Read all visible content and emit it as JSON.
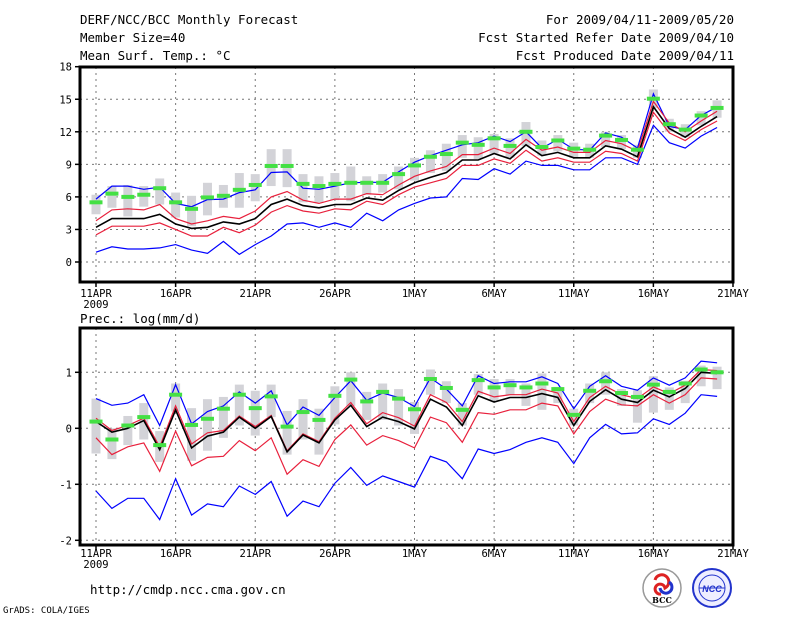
{
  "header": {
    "title": "DERF/NCC/BCC Monthly Forecast",
    "member_size": "Member Size=40",
    "variable": "Mean Surf. Temp.: °C",
    "period": "For 2009/04/11-2009/05/20",
    "started": "Fcst Started Refer Date 2009/04/10",
    "produced": "Fcst Produced Date 2009/04/11"
  },
  "footer": {
    "url": "http://cmdp.ncc.cma.gov.cn",
    "credit": "GrADS: COLA/IGES",
    "logo_bcc": "BCC",
    "logo_ncc": "NCC"
  },
  "colors": {
    "outer": "#0000ff",
    "inner": "#e8203c",
    "mean": "#000000",
    "median": "#44e044",
    "box": "#d3d3d8"
  },
  "chart_data": [
    {
      "type": "line",
      "title": "Mean Surf. Temp.: °C",
      "xlabel": "",
      "ylabel": "",
      "x_ticks": [
        "11APR",
        "16APR",
        "21APR",
        "26APR",
        "1MAY",
        "6MAY",
        "11MAY",
        "16MAY",
        "21MAY"
      ],
      "x_year": "2009",
      "xlim_days": [
        0,
        40
      ],
      "ylim": [
        -2,
        18
      ],
      "y_ticks": [
        "0",
        "3",
        "6",
        "9",
        "12",
        "15",
        "18"
      ],
      "y_tick_values": [
        0,
        3,
        6,
        9,
        12,
        15,
        18
      ],
      "grid": true,
      "series": [
        {
          "name": "upper-outer",
          "color": "outer",
          "values": [
            5.8,
            7.0,
            7.0,
            6.7,
            6.9,
            5.4,
            5.1,
            5.75,
            5.8,
            6.4,
            6.65,
            8.25,
            8.3,
            6.8,
            6.7,
            7.0,
            7.3,
            7.35,
            7.35,
            8.3,
            9.2,
            9.8,
            10.3,
            10.8,
            11.0,
            11.6,
            11.1,
            12.0,
            10.5,
            11.3,
            10.4,
            10.3,
            11.9,
            11.5,
            10.5,
            15.5,
            12.5,
            12.2,
            13.5,
            14.3
          ]
        },
        {
          "name": "upper-inner",
          "color": "inner",
          "values": [
            3.8,
            4.8,
            4.9,
            4.8,
            5.3,
            4.0,
            3.5,
            3.8,
            4.2,
            4.0,
            4.7,
            6.0,
            6.5,
            5.7,
            5.4,
            5.8,
            5.8,
            6.3,
            6.2,
            7.1,
            7.9,
            8.4,
            8.8,
            9.9,
            9.9,
            10.5,
            10.0,
            11.3,
            10.3,
            10.6,
            10.1,
            10.1,
            11.2,
            10.9,
            10.2,
            14.8,
            12.8,
            12.0,
            13.0,
            13.9
          ]
        },
        {
          "name": "mean",
          "color": "mean",
          "values": [
            3.2,
            4.0,
            4.0,
            4.0,
            4.4,
            3.5,
            3.1,
            3.2,
            3.7,
            3.5,
            4.0,
            5.3,
            5.8,
            5.2,
            5.0,
            5.3,
            5.3,
            5.9,
            5.7,
            6.6,
            7.3,
            7.8,
            8.25,
            9.4,
            9.4,
            10.0,
            9.5,
            10.8,
            9.8,
            10.1,
            9.6,
            9.6,
            10.7,
            10.4,
            9.7,
            14.3,
            12.3,
            11.5,
            12.5,
            13.4
          ]
        },
        {
          "name": "lower-inner",
          "color": "inner",
          "values": [
            2.5,
            3.3,
            3.3,
            3.3,
            3.6,
            3.0,
            2.4,
            2.4,
            3.2,
            2.7,
            3.4,
            4.6,
            5.2,
            4.7,
            4.5,
            4.9,
            4.8,
            5.6,
            5.3,
            6.2,
            6.9,
            7.3,
            7.7,
            8.9,
            8.9,
            9.5,
            9.1,
            10.3,
            9.3,
            9.6,
            9.2,
            9.2,
            10.2,
            10.0,
            9.3,
            13.8,
            11.9,
            11.2,
            12.2,
            13.0
          ]
        },
        {
          "name": "lower-outer",
          "color": "outer",
          "values": [
            0.9,
            1.4,
            1.2,
            1.2,
            1.3,
            1.6,
            1.1,
            0.8,
            1.9,
            0.7,
            1.6,
            2.4,
            3.5,
            3.6,
            3.2,
            3.6,
            3.2,
            4.5,
            3.8,
            4.8,
            5.4,
            5.9,
            6.0,
            7.7,
            7.6,
            8.6,
            8.1,
            9.3,
            8.9,
            8.9,
            8.5,
            8.5,
            9.6,
            9.6,
            9.0,
            12.6,
            11.0,
            10.5,
            11.6,
            12.4
          ]
        }
      ],
      "median": [
        5.5,
        6.3,
        6.0,
        6.2,
        6.8,
        5.5,
        4.9,
        5.95,
        6.1,
        6.65,
        7.1,
        8.85,
        8.85,
        7.2,
        7.0,
        7.2,
        7.3,
        7.3,
        7.3,
        8.1,
        8.9,
        9.7,
        9.95,
        11.0,
        10.8,
        11.4,
        10.7,
        12.0,
        10.6,
        11.2,
        10.45,
        10.35,
        11.65,
        11.25,
        10.35,
        15.05,
        12.7,
        12.2,
        13.5,
        14.2
      ],
      "box_low": [
        4.4,
        5.0,
        4.2,
        5.1,
        5.3,
        4.1,
        3.3,
        4.3,
        5.0,
        5.0,
        5.6,
        7.0,
        6.9,
        5.5,
        5.5,
        5.7,
        5.6,
        6.2,
        6.4,
        6.7,
        7.5,
        8.2,
        8.4,
        9.6,
        9.5,
        10.0,
        9.6,
        10.7,
        9.8,
        10.2,
        9.6,
        9.6,
        10.6,
        10.4,
        9.6,
        14.2,
        12.0,
        11.5,
        12.6,
        13.3
      ],
      "box_high": [
        6.2,
        7.0,
        7.1,
        7.0,
        7.7,
        6.4,
        6.1,
        7.3,
        7.1,
        8.2,
        8.1,
        10.4,
        10.4,
        8.1,
        7.9,
        8.2,
        8.8,
        7.9,
        8.1,
        8.8,
        9.6,
        10.3,
        10.9,
        11.7,
        11.5,
        11.8,
        11.4,
        12.9,
        11.2,
        11.7,
        11.0,
        10.9,
        12.0,
        11.7,
        10.8,
        15.9,
        13.2,
        12.7,
        13.9,
        14.9
      ]
    },
    {
      "type": "line",
      "title": "Prec.: log(mm/d)",
      "xlabel": "",
      "ylabel": "",
      "x_ticks": [
        "11APR",
        "16APR",
        "21APR",
        "26APR",
        "1MAY",
        "6MAY",
        "11MAY",
        "16MAY",
        "21MAY"
      ],
      "x_year": "2009",
      "xlim_days": [
        0,
        40
      ],
      "ylim": [
        -2.1,
        1.77
      ],
      "y_ticks": [
        "-2",
        "-1",
        "0",
        "1"
      ],
      "y_tick_values": [
        -2,
        -1,
        0,
        1
      ],
      "grid": true,
      "series": [
        {
          "name": "upper-outer",
          "color": "outer",
          "values": [
            0.53,
            0.41,
            0.45,
            0.6,
            0.05,
            0.78,
            0.08,
            0.3,
            0.4,
            0.65,
            0.45,
            0.67,
            0.06,
            0.38,
            0.23,
            0.55,
            0.85,
            0.5,
            0.63,
            0.55,
            0.39,
            0.9,
            0.7,
            0.4,
            0.94,
            0.8,
            0.83,
            0.83,
            0.92,
            0.8,
            0.35,
            0.75,
            0.94,
            0.75,
            0.68,
            0.9,
            0.77,
            0.9,
            1.2,
            1.17
          ]
        },
        {
          "name": "upper-inner",
          "color": "inner",
          "values": [
            0.18,
            -0.04,
            0.05,
            0.18,
            -0.33,
            0.4,
            -0.28,
            -0.08,
            -0.04,
            0.22,
            0.03,
            0.23,
            -0.4,
            -0.1,
            -0.24,
            0.18,
            0.46,
            0.08,
            0.28,
            0.19,
            0.04,
            0.6,
            0.46,
            0.12,
            0.66,
            0.56,
            0.6,
            0.6,
            0.7,
            0.63,
            0.12,
            0.55,
            0.75,
            0.6,
            0.53,
            0.74,
            0.62,
            0.77,
            1.05,
            1.03
          ]
        },
        {
          "name": "mean",
          "color": "mean",
          "values": [
            0.12,
            -0.07,
            0.0,
            0.14,
            -0.38,
            0.33,
            -0.35,
            -0.14,
            -0.07,
            0.2,
            0.0,
            0.21,
            -0.42,
            -0.12,
            -0.26,
            0.15,
            0.41,
            0.03,
            0.2,
            0.12,
            -0.01,
            0.52,
            0.38,
            0.05,
            0.58,
            0.47,
            0.55,
            0.55,
            0.62,
            0.55,
            0.05,
            0.48,
            0.69,
            0.52,
            0.46,
            0.68,
            0.56,
            0.71,
            1.0,
            0.98
          ]
        },
        {
          "name": "lower-inner",
          "color": "inner",
          "values": [
            -0.17,
            -0.47,
            -0.33,
            -0.26,
            -0.77,
            -0.05,
            -0.67,
            -0.52,
            -0.5,
            -0.22,
            -0.4,
            -0.17,
            -0.82,
            -0.56,
            -0.68,
            -0.2,
            0.06,
            -0.3,
            -0.13,
            -0.22,
            -0.35,
            0.2,
            0.1,
            -0.25,
            0.28,
            0.25,
            0.33,
            0.33,
            0.45,
            0.4,
            -0.1,
            0.3,
            0.52,
            0.42,
            0.4,
            0.6,
            0.45,
            0.6,
            0.9,
            0.88
          ]
        },
        {
          "name": "lower-outer",
          "color": "outer",
          "values": [
            -1.12,
            -1.43,
            -1.25,
            -1.25,
            -1.63,
            -0.9,
            -1.55,
            -1.35,
            -1.4,
            -1.03,
            -1.18,
            -0.95,
            -1.57,
            -1.3,
            -1.4,
            -0.98,
            -0.7,
            -1.02,
            -0.85,
            -0.95,
            -1.05,
            -0.5,
            -0.6,
            -0.9,
            -0.37,
            -0.45,
            -0.38,
            -0.25,
            -0.17,
            -0.25,
            -0.63,
            -0.17,
            0.07,
            -0.1,
            -0.08,
            0.17,
            0.07,
            0.27,
            0.6,
            0.57
          ]
        }
      ],
      "median": [
        0.12,
        -0.2,
        0.05,
        0.2,
        -0.3,
        0.6,
        0.06,
        0.17,
        0.35,
        0.6,
        0.36,
        0.57,
        0.03,
        0.29,
        0.15,
        0.58,
        0.87,
        0.48,
        0.65,
        0.53,
        0.34,
        0.88,
        0.72,
        0.33,
        0.86,
        0.73,
        0.77,
        0.73,
        0.8,
        0.7,
        0.24,
        0.67,
        0.84,
        0.63,
        0.56,
        0.78,
        0.65,
        0.8,
        1.05,
        1.0
      ],
      "box_low": [
        -0.45,
        -0.55,
        -0.3,
        -0.2,
        -0.6,
        0.3,
        -0.58,
        -0.4,
        -0.17,
        0.05,
        -0.13,
        0.2,
        -0.47,
        -0.2,
        -0.47,
        0.07,
        0.4,
        0.15,
        0.15,
        0.05,
        -0.1,
        0.6,
        0.45,
        0.05,
        0.6,
        0.5,
        0.6,
        0.4,
        0.33,
        0.45,
        0.05,
        0.45,
        0.6,
        0.4,
        0.1,
        0.28,
        0.33,
        0.45,
        0.75,
        0.7
      ],
      "box_high": [
        0.53,
        0.0,
        0.22,
        0.45,
        -0.05,
        0.8,
        0.36,
        0.52,
        0.56,
        0.78,
        0.67,
        0.78,
        0.31,
        0.52,
        0.35,
        0.75,
        1.0,
        0.65,
        0.8,
        0.7,
        0.47,
        1.05,
        0.84,
        0.45,
        0.97,
        0.88,
        0.88,
        0.8,
        0.98,
        0.74,
        0.35,
        0.8,
        1.0,
        0.7,
        0.68,
        0.93,
        0.73,
        0.85,
        1.12,
        1.1
      ]
    }
  ]
}
